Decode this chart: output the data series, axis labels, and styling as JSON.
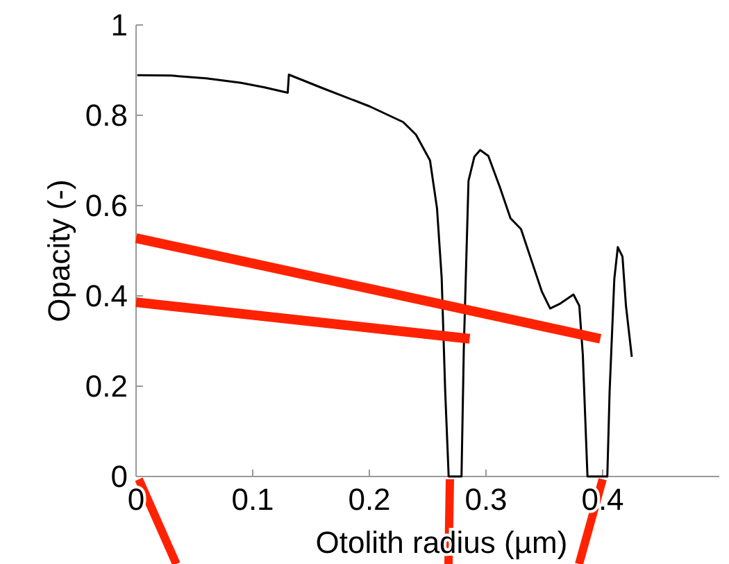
{
  "chart_data": {
    "type": "line",
    "xlabel": "Otolith radius (µm)",
    "ylabel": "Opacity (-)",
    "xlim": [
      0,
      0.5
    ],
    "ylim": [
      0,
      1
    ],
    "xticks": [
      0,
      0.1,
      0.2,
      0.3,
      0.4
    ],
    "yticks": [
      0,
      0.2,
      0.4,
      0.6,
      0.8,
      1
    ],
    "grid": false,
    "marker": "none",
    "line_style": "solid",
    "series": [
      {
        "color": "#000000",
        "x": [
          0.001,
          0.03,
          0.06,
          0.09,
          0.11,
          0.13,
          0.131,
          0.16,
          0.2,
          0.229,
          0.24,
          0.252,
          0.258,
          0.262,
          0.265,
          0.268,
          0.279,
          0.281,
          0.285,
          0.29,
          0.295,
          0.302,
          0.312,
          0.321,
          0.33,
          0.338,
          0.348,
          0.355,
          0.363,
          0.375,
          0.38,
          0.383,
          0.387,
          0.404,
          0.406,
          0.41,
          0.413,
          0.417,
          0.42,
          0.425
        ],
        "values": [
          0.889,
          0.888,
          0.882,
          0.872,
          0.862,
          0.85,
          0.89,
          0.86,
          0.82,
          0.785,
          0.757,
          0.7,
          0.594,
          0.44,
          0.19,
          0,
          0,
          0.286,
          0.655,
          0.708,
          0.723,
          0.71,
          0.64,
          0.572,
          0.548,
          0.486,
          0.409,
          0.372,
          0.382,
          0.403,
          0.378,
          0.27,
          0,
          0,
          0.19,
          0.437,
          0.508,
          0.487,
          0.378,
          0.265
        ]
      },
      {
        "color": "#ff2200",
        "x": [
          0,
          0.398
        ],
        "values": [
          0.528,
          0.305
        ]
      },
      {
        "color": "#ff2200",
        "x": [
          0,
          0.286
        ],
        "values": [
          0.386,
          0.305
        ]
      }
    ]
  }
}
